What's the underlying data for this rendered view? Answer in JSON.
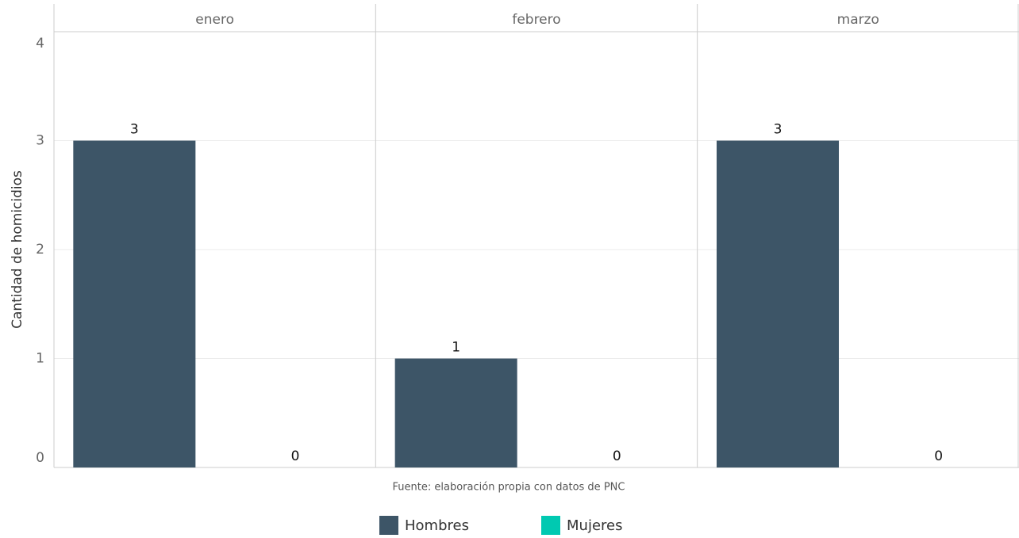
{
  "chart_data": {
    "type": "bar",
    "y_label": "Cantidad de homicidios",
    "caption": "Fuente: elaboración propia con datos de PNC",
    "facets": [
      "enero",
      "febrero",
      "marzo"
    ],
    "series": [
      {
        "name": "Hombres",
        "color": "#3d5567",
        "values": [
          3,
          1,
          3
        ]
      },
      {
        "name": "Mujeres",
        "color": "#00c9b1",
        "values": [
          0,
          0,
          0
        ]
      }
    ],
    "ylim": [
      0,
      4
    ],
    "yticks": [
      0,
      1,
      2,
      3,
      4
    ],
    "grid": true,
    "legend": "bottom"
  }
}
